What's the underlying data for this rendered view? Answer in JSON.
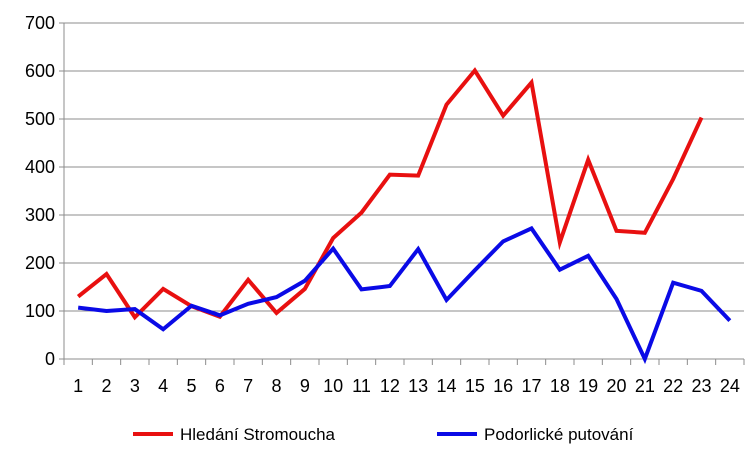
{
  "chart_data": {
    "type": "line",
    "title": "",
    "xlabel": "",
    "ylabel": "",
    "x": [
      1,
      2,
      3,
      4,
      5,
      6,
      7,
      8,
      9,
      10,
      11,
      12,
      13,
      14,
      15,
      16,
      17,
      18,
      19,
      20,
      21,
      22,
      23,
      24
    ],
    "ylim": [
      0,
      700
    ],
    "yticks": [
      0,
      100,
      200,
      300,
      400,
      500,
      600,
      700
    ],
    "grid": true,
    "legend_position": "bottom",
    "series": [
      {
        "name": "Hledání Stromoucha",
        "color": "#e81010",
        "values": [
          130,
          177,
          87,
          146,
          110,
          88,
          165,
          96,
          146,
          252,
          305,
          384,
          382,
          530,
          601,
          507,
          576,
          243,
          415,
          267,
          263,
          375,
          503,
          null
        ]
      },
      {
        "name": "Podorlické putování",
        "color": "#0a0ae6",
        "values": [
          107,
          100,
          104,
          62,
          111,
          91,
          115,
          129,
          163,
          230,
          145,
          152,
          229,
          123,
          185,
          245,
          272,
          186,
          215,
          125,
          0,
          159,
          142,
          80
        ]
      }
    ]
  }
}
